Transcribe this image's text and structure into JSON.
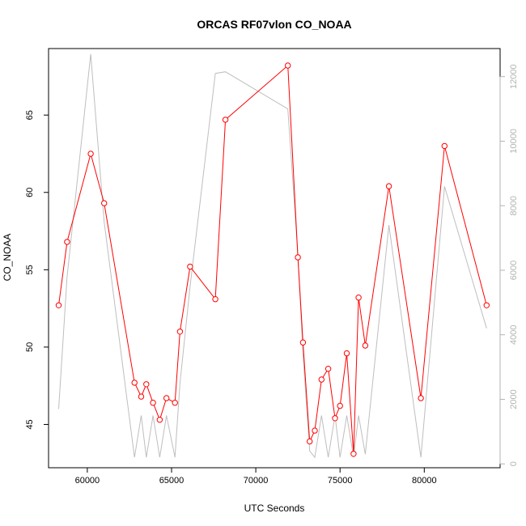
{
  "chart_data": {
    "type": "line",
    "title": "ORCAS RF07vlon CO_NOAA",
    "xlabel": "UTC Seconds",
    "ylabel": "CO_NOAA",
    "xlim": [
      57700,
      84500
    ],
    "ylim": [
      42.2,
      69.3
    ],
    "y2lim": [
      -120,
      12870
    ],
    "x_ticks": [
      60000,
      65000,
      70000,
      75000,
      80000
    ],
    "y_ticks": [
      45,
      50,
      55,
      60,
      65
    ],
    "y2_ticks": [
      0,
      2000,
      4000,
      6000,
      8000,
      10000,
      12000
    ],
    "grid": false,
    "series": [
      {
        "role": "secondary",
        "axis": "right",
        "color": "#bebebe",
        "x": [
          58300,
          58800,
          60200,
          61000,
          62800,
          63200,
          63500,
          63900,
          64300,
          64700,
          65200,
          65500,
          66100,
          67600,
          68200,
          71900,
          72500,
          72800,
          73200,
          73500,
          73900,
          74300,
          74700,
          75000,
          75400,
          75800,
          76100,
          76500,
          77900,
          79800,
          81200,
          83700
        ],
        "values": [
          1700,
          5800,
          12700,
          7500,
          200,
          1500,
          200,
          1500,
          200,
          1500,
          200,
          2500,
          5500,
          12100,
          12150,
          11000,
          6500,
          3400,
          400,
          200,
          1500,
          200,
          1500,
          200,
          1500,
          200,
          1500,
          300,
          7400,
          200,
          8600,
          4200
        ]
      },
      {
        "role": "primary",
        "axis": "left",
        "color": "#ff0000",
        "x": [
          58300,
          58800,
          60200,
          61000,
          62800,
          63200,
          63500,
          63900,
          64300,
          64700,
          65200,
          65500,
          66100,
          67600,
          68200,
          71900,
          72500,
          72800,
          73200,
          73500,
          73900,
          74300,
          74700,
          75000,
          75400,
          75800,
          76100,
          76500,
          77900,
          79800,
          81200,
          83700
        ],
        "values": [
          52.7,
          56.8,
          62.5,
          59.3,
          47.7,
          46.8,
          47.6,
          46.4,
          45.3,
          46.7,
          46.4,
          51.0,
          55.2,
          53.1,
          64.7,
          68.2,
          55.8,
          50.3,
          43.9,
          44.6,
          47.9,
          48.6,
          45.4,
          46.2,
          49.6,
          43.1,
          53.2,
          50.1,
          60.4,
          46.7,
          63.0,
          52.7
        ]
      }
    ]
  }
}
